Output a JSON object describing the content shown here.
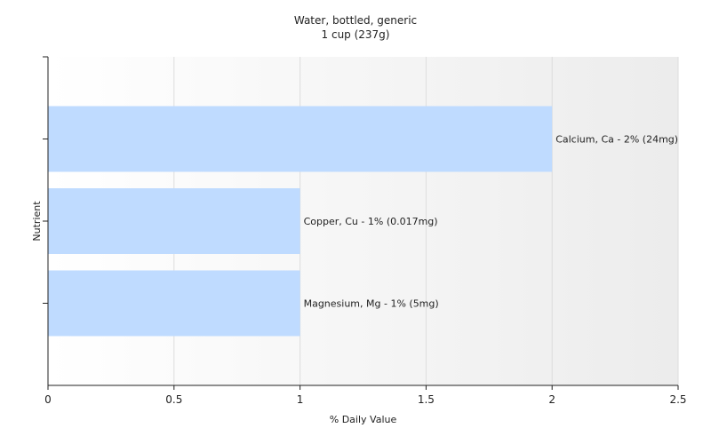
{
  "chart_data": {
    "type": "bar",
    "orientation": "horizontal",
    "title": "Water, bottled, generic",
    "subtitle": "1 cup (237g)",
    "xlabel": "% Daily Value",
    "ylabel": "Nutrient",
    "xlim": [
      0,
      2.5
    ],
    "xticks": [
      0,
      0.5,
      1,
      1.5,
      2,
      2.5
    ],
    "xtick_labels": [
      "0",
      "0.5",
      "1",
      "1.5",
      "2",
      "2.5"
    ],
    "grid": true,
    "bar_color": "#bfdbff",
    "bars": [
      {
        "label": "Calcium, Ca - 2% (24mg)",
        "value": 2
      },
      {
        "label": "Copper, Cu - 1% (0.017mg)",
        "value": 1
      },
      {
        "label": "Magnesium, Mg - 1% (5mg)",
        "value": 1
      }
    ]
  }
}
